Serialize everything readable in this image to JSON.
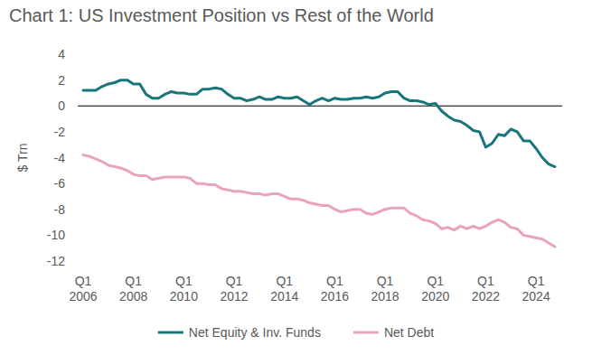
{
  "chart_data": {
    "type": "line",
    "title": "Chart 1: US Investment Position vs Rest of the World",
    "y_label": "$ Trn",
    "categories": [
      "Q1 2006",
      null,
      null,
      null,
      null,
      null,
      null,
      null,
      "Q1 2008",
      null,
      null,
      null,
      null,
      null,
      null,
      null,
      "Q1 2010",
      null,
      null,
      null,
      null,
      null,
      null,
      null,
      "Q1 2012",
      null,
      null,
      null,
      null,
      null,
      null,
      null,
      "Q1 2014",
      null,
      null,
      null,
      null,
      null,
      null,
      null,
      "Q1 2016",
      null,
      null,
      null,
      null,
      null,
      null,
      null,
      "Q1 2018",
      null,
      null,
      null,
      null,
      null,
      null,
      null,
      "Q1 2020",
      null,
      null,
      null,
      null,
      null,
      null,
      null,
      "Q1 2022",
      null,
      null,
      null,
      null,
      null,
      null,
      null,
      "Q1 2024",
      null,
      null,
      null
    ],
    "series": [
      {
        "name": "Net Equity & Inv. Funds",
        "color": "#17767b",
        "values": [
          1.2,
          1.2,
          1.2,
          1.5,
          1.7,
          1.8,
          2.0,
          2.0,
          1.7,
          1.7,
          0.9,
          0.6,
          0.6,
          0.9,
          1.1,
          1.0,
          1.0,
          0.9,
          0.9,
          1.3,
          1.3,
          1.4,
          1.3,
          0.9,
          0.6,
          0.6,
          0.4,
          0.5,
          0.7,
          0.5,
          0.5,
          0.7,
          0.6,
          0.6,
          0.7,
          0.4,
          0.1,
          0.4,
          0.6,
          0.4,
          0.6,
          0.5,
          0.5,
          0.6,
          0.6,
          0.7,
          0.6,
          0.7,
          1.0,
          1.1,
          1.1,
          0.6,
          0.4,
          0.4,
          0.3,
          0.1,
          0.2,
          -0.4,
          -0.8,
          -1.1,
          -1.2,
          -1.5,
          -1.9,
          -2.0,
          -3.2,
          -2.9,
          -2.2,
          -2.3,
          -1.8,
          -2.0,
          -2.7,
          -2.7,
          -3.3,
          -4.0,
          -4.5,
          -4.7
        ]
      },
      {
        "name": "Net Debt",
        "color": "#eaa3bc",
        "values": [
          -3.8,
          -3.9,
          -4.1,
          -4.3,
          -4.6,
          -4.7,
          -4.8,
          -5.0,
          -5.3,
          -5.4,
          -5.4,
          -5.7,
          -5.6,
          -5.5,
          -5.5,
          -5.5,
          -5.5,
          -5.6,
          -6.0,
          -6.0,
          -6.1,
          -6.1,
          -6.4,
          -6.5,
          -6.6,
          -6.6,
          -6.7,
          -6.8,
          -6.8,
          -6.9,
          -6.8,
          -6.8,
          -7.0,
          -7.2,
          -7.2,
          -7.3,
          -7.5,
          -7.6,
          -7.7,
          -7.7,
          -8.0,
          -8.2,
          -8.1,
          -8.0,
          -8.0,
          -8.3,
          -8.4,
          -8.2,
          -8.0,
          -7.9,
          -7.9,
          -7.9,
          -8.3,
          -8.5,
          -8.8,
          -8.9,
          -9.1,
          -9.5,
          -9.4,
          -9.6,
          -9.3,
          -9.5,
          -9.3,
          -9.5,
          -9.3,
          -9.0,
          -8.8,
          -9.0,
          -9.4,
          -9.5,
          -10.0,
          -10.1,
          -10.2,
          -10.3,
          -10.6,
          -10.9
        ]
      }
    ],
    "ylim": [
      -12,
      4
    ],
    "yticks": [
      -12,
      -10,
      -8,
      -6,
      -4,
      -2,
      0,
      2,
      4
    ],
    "grid": false,
    "legend": "bottom"
  }
}
